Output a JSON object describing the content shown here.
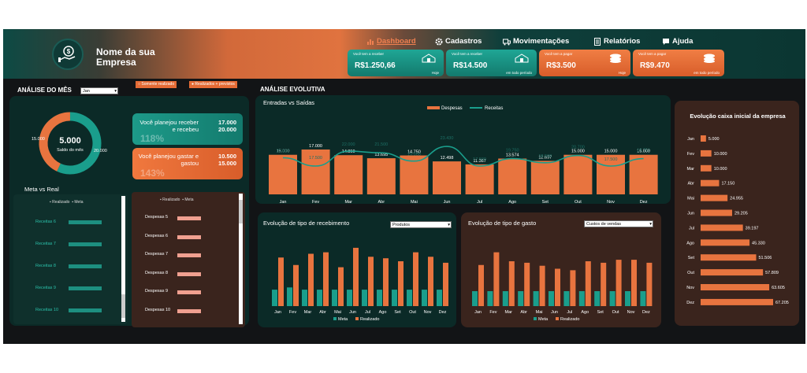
{
  "header": {
    "company_line1": "Nome da sua",
    "company_line2": "Empresa"
  },
  "nav": [
    {
      "label": "Dashboard",
      "icon": "chart-icon"
    },
    {
      "label": "Cadastros",
      "icon": "gear-icon"
    },
    {
      "label": "Movimentações",
      "icon": "truck-icon"
    },
    {
      "label": "Relatórios",
      "icon": "document-icon"
    },
    {
      "label": "Ajuda",
      "icon": "chat-icon"
    }
  ],
  "kpis": [
    {
      "label": "Você tem a receber",
      "value": "R$1.250,66",
      "sub": "Hoje",
      "color": "teal"
    },
    {
      "label": "Você tem a receber",
      "value": "R$14.500",
      "sub": "em todo período",
      "color": "teal"
    },
    {
      "label": "Você tem a pagar",
      "value": "R$3.500",
      "sub": "Hoje",
      "color": "orange"
    },
    {
      "label": "Você tem a pagar",
      "value": "R$9.470",
      "sub": "em todo período",
      "color": "orange"
    }
  ],
  "analise_mes": {
    "title": "ANÁLISE DO MÊS",
    "month": "Jan",
    "toggle1": "Somente realizado",
    "toggle2": "Realizados + previstos",
    "donut": {
      "center_value": "5.000",
      "center_label": "Saldo do mês",
      "left_value": "15.000",
      "right_value": "20.000",
      "fraction_teal": 0.57
    }
  },
  "planned": [
    {
      "text": "Você planejou receber e recebeu",
      "planned": "17.000",
      "actual": "20.000",
      "pct": "118%",
      "color": "teal"
    },
    {
      "text": "Você planejou gastar e gastou",
      "planned": "10.500",
      "actual": "15.000",
      "pct": "143%",
      "color": "orange"
    }
  ],
  "meta_vs_real": {
    "title": "Meta vs Real",
    "legend_realizado": "Realizado",
    "legend_meta": "Meta",
    "receitas": [
      "Receitas 6",
      "Receitas 7",
      "Receitas 8",
      "Receitas 9",
      "Receitas 10"
    ],
    "despesas": [
      "Despesas 5",
      "Despesas 6",
      "Despesas 7",
      "Despesas 8",
      "Despesas 9",
      "Despesas 10"
    ]
  },
  "analise_evolutiva": {
    "title": "ANÁLISE EVOLUTIVA",
    "subtitle": "Entradas vs Saídas"
  },
  "colors": {
    "teal": "#1a9e8c",
    "orange": "#e8743f",
    "bg": "#121416"
  },
  "chart_data": [
    {
      "type": "bar",
      "title": "Entradas vs Saídas",
      "categories": [
        "Jan",
        "Fev",
        "Mar",
        "Abr",
        "Mai",
        "Jun",
        "Jul",
        "Ago",
        "Set",
        "Out",
        "Nov",
        "Dez"
      ],
      "series": [
        {
          "name": "Despesas",
          "type": "bar",
          "values": [
            15000,
            17000,
            14850,
            13695,
            14750,
            12498,
            11367,
            13574,
            12697,
            15000,
            15000,
            15000
          ],
          "labels": [
            "15.000",
            "17.000",
            "14.850",
            "13.695",
            "14.750",
            "12.498",
            "11.367",
            "13.574",
            "12.697",
            "15.000",
            "15.000",
            "15.000"
          ]
        },
        {
          "name": "Receitas",
          "type": "line",
          "values": [
            20000,
            17500,
            22000,
            21500,
            19000,
            23430,
            17500,
            19750,
            18500,
            20700,
            17500,
            19751
          ],
          "labels": [
            "20.000",
            "17.500",
            "22.000",
            "21.500",
            "19.000",
            "23.430",
            "17.500",
            "19.750",
            "18.500",
            "20.700",
            "17.500",
            "19.751"
          ]
        }
      ]
    },
    {
      "type": "bar",
      "title": "Evolução de tipo de recebimento",
      "dropdown": "Produtos",
      "categories": [
        "Jan",
        "Fev",
        "Mar",
        "Abr",
        "Mai",
        "Jun",
        "Jul",
        "Ago",
        "Set",
        "Out",
        "Nov",
        "Dez"
      ],
      "series": [
        {
          "name": "Meta",
          "values": [
            22,
            25,
            22,
            22,
            22,
            22,
            22,
            22,
            22,
            22,
            22,
            22
          ]
        },
        {
          "name": "Realizado",
          "values": [
            65,
            55,
            70,
            72,
            52,
            78,
            66,
            64,
            60,
            72,
            66,
            58
          ]
        }
      ]
    },
    {
      "type": "bar",
      "title": "Evolução de tipo de gasto",
      "dropdown": "Custos de vendas",
      "categories": [
        "Jan",
        "Fev",
        "Mar",
        "Abr",
        "Mai",
        "Jun",
        "Jul",
        "Ago",
        "Set",
        "Out",
        "Nov",
        "Dez"
      ],
      "series": [
        {
          "name": "Meta",
          "values": [
            20,
            20,
            20,
            20,
            20,
            20,
            20,
            20,
            20,
            20,
            20,
            20
          ]
        },
        {
          "name": "Realizado",
          "values": [
            55,
            72,
            60,
            58,
            54,
            50,
            48,
            60,
            58,
            62,
            62,
            58
          ]
        }
      ]
    },
    {
      "type": "bar",
      "title": "Evolução caixa inicial da empresa",
      "orientation": "horizontal",
      "categories": [
        "Jan",
        "Fev",
        "Mar",
        "Abr",
        "Mai",
        "Jun",
        "Jul",
        "Ago",
        "Set",
        "Out",
        "Nov",
        "Dez"
      ],
      "values": [
        5000,
        10000,
        10000,
        17150,
        24955,
        29205,
        39197,
        45330,
        51506,
        57809,
        63605,
        67205
      ],
      "labels": [
        "5.000",
        "10.000",
        "10.000",
        "17.150",
        "24.955",
        "29.205",
        "39.197",
        "45.330",
        "51.506",
        "57.809",
        "63.605",
        "67.205"
      ]
    }
  ]
}
